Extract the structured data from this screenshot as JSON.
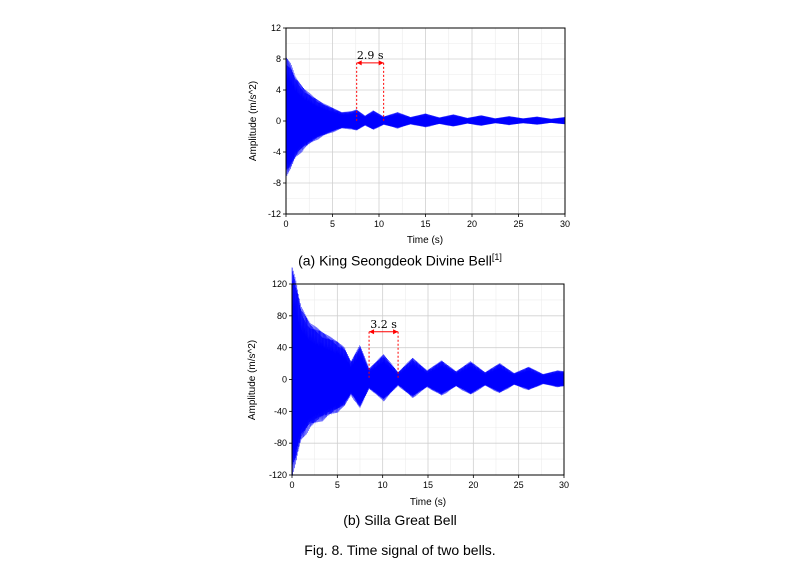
{
  "chart_data": [
    {
      "type": "line",
      "title": "",
      "caption": "(a) King Seongdeok Divine Bell",
      "caption_ref": "[1]",
      "xlabel": "Time (s)",
      "ylabel": "Amplitude (m/s^2)",
      "xlim": [
        0,
        30
      ],
      "ylim": [
        -12,
        12
      ],
      "x_ticks": [
        "0",
        "5",
        "10",
        "15",
        "20",
        "25",
        "30"
      ],
      "y_ticks": [
        "12",
        "8",
        "4",
        "0",
        "-4",
        "-8",
        "-12"
      ],
      "grid": true,
      "series_color": "#0000ff",
      "envelope": {
        "t": [
          0,
          0.5,
          1,
          2,
          3,
          4,
          5,
          6,
          7,
          7.6,
          8.5,
          9.4,
          10.5,
          12,
          13.4,
          15,
          16.5,
          18,
          19.5,
          21,
          22.5,
          24,
          25.5,
          27,
          28.5,
          30
        ],
        "amplitude": [
          7.3,
          6.5,
          5.0,
          3.6,
          2.7,
          2.0,
          1.5,
          1.0,
          1.1,
          1.3,
          0.6,
          1.2,
          0.5,
          1.0,
          0.45,
          0.85,
          0.4,
          0.75,
          0.35,
          0.65,
          0.3,
          0.55,
          0.3,
          0.5,
          0.25,
          0.45
        ]
      },
      "annotation": {
        "label": "2.9 s",
        "x_start": 7.6,
        "x_end": 10.5,
        "y": 7.5
      }
    },
    {
      "type": "line",
      "title": "",
      "caption": "(b) Silla Great Bell",
      "xlabel": "Time (s)",
      "ylabel": "Amplitude (m/s^2)",
      "xlim": [
        0,
        30
      ],
      "ylim": [
        -120,
        120
      ],
      "x_ticks": [
        "0",
        "5",
        "10",
        "15",
        "20",
        "25",
        "30"
      ],
      "y_ticks": [
        "120",
        "80",
        "40",
        "0",
        "-40",
        "-80",
        "-120"
      ],
      "grid": true,
      "series_color": "#0000ff",
      "envelope": {
        "t": [
          0,
          0.4,
          1,
          2,
          3,
          4,
          5,
          5.8,
          6.5,
          7.5,
          8.5,
          10.1,
          11.7,
          13.3,
          14.9,
          16.5,
          18.1,
          19.7,
          21.3,
          22.9,
          24.5,
          26.1,
          27.7,
          29.3,
          30
        ],
        "amplitude": [
          125,
          110,
          80,
          62,
          55,
          48,
          42,
          35,
          20,
          38,
          12,
          28,
          8,
          24,
          10,
          21,
          9,
          20,
          8,
          18,
          7,
          14,
          6,
          10,
          9
        ]
      },
      "annotation": {
        "label": "3.2 s",
        "x_start": 8.5,
        "x_end": 11.7,
        "y": 60
      }
    }
  ],
  "figure_caption": "Fig. 8. Time signal of two bells.",
  "colors": {
    "signal": "#0000ff",
    "annotation": "#ff0000",
    "grid": "#d0d0d0",
    "minor_grid": "#ececec"
  }
}
